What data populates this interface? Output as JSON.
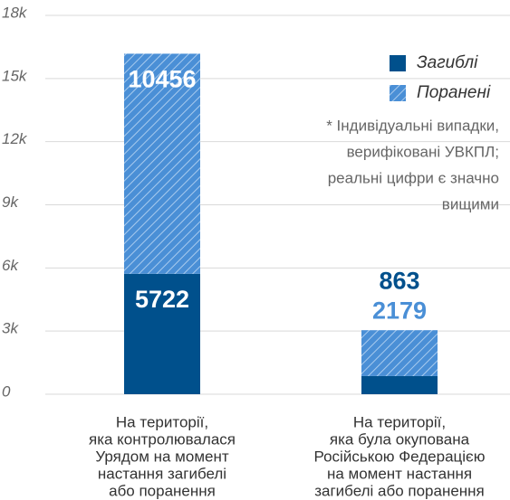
{
  "chart_data": {
    "type": "stacked_bar",
    "categories": [
      [
        "На території,",
        "яка контролювалася",
        "Урядом на момент",
        "настання загибелі",
        "або поранення"
      ],
      [
        "На території,",
        "яка була окупована",
        "Російською Федерацією",
        "на момент настання",
        "загибелі або поранення"
      ]
    ],
    "series": [
      {
        "name": "Загиблі",
        "color": "#00508c",
        "values": [
          5722,
          863
        ]
      },
      {
        "name": "Поранені",
        "color": "#4a8fd6",
        "hatch": true,
        "values": [
          10456,
          2179
        ]
      }
    ],
    "ylim": [
      0,
      18000
    ],
    "yticks": [
      0,
      {
        "value": 3000,
        "label": "3k"
      },
      {
        "value": 6000,
        "label": "6k"
      },
      {
        "value": 9000,
        "label": "9k"
      },
      {
        "value": 12000,
        "label": "12k"
      },
      {
        "value": 15000,
        "label": "15k"
      },
      {
        "value": 18000,
        "label": "18k"
      }
    ],
    "grid": true,
    "annotation": [
      "* Індивідуальні випадки,",
      "верифіковані УВКПЛ;",
      "реальні цифри є значно",
      "вищими"
    ]
  }
}
